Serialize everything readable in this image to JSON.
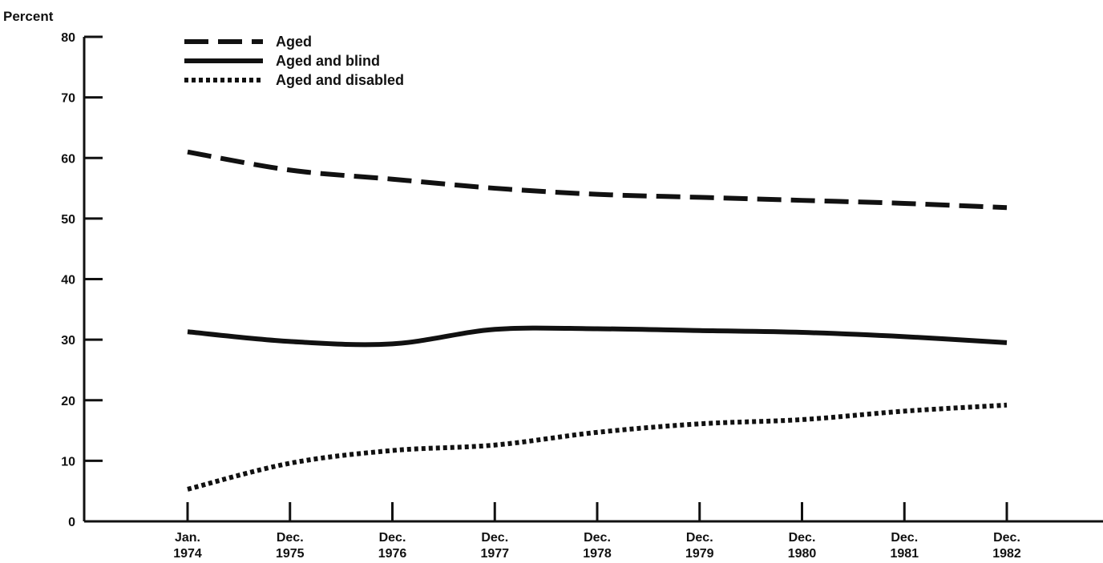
{
  "chart_data": {
    "type": "line",
    "title": "",
    "xlabel": "",
    "ylabel": "Percent",
    "ylim": [
      0,
      80
    ],
    "yticks": [
      0,
      10,
      20,
      30,
      40,
      50,
      60,
      70,
      80
    ],
    "categories": [
      [
        "Jan.",
        "1974"
      ],
      [
        "Dec.",
        "1975"
      ],
      [
        "Dec.",
        "1976"
      ],
      [
        "Dec.",
        "1977"
      ],
      [
        "Dec.",
        "1978"
      ],
      [
        "Dec.",
        "1979"
      ],
      [
        "Dec.",
        "1980"
      ],
      [
        "Dec.",
        "1981"
      ],
      [
        "Dec.",
        "1982"
      ]
    ],
    "series": [
      {
        "name": "Aged",
        "style": "dashed",
        "color": "#111111",
        "values": [
          61,
          58,
          56.5,
          55,
          54,
          53.5,
          53,
          52.5,
          51.8
        ]
      },
      {
        "name": "Aged and blind",
        "style": "solid",
        "color": "#111111",
        "values": [
          31.3,
          29.7,
          29.3,
          31.7,
          31.8,
          31.5,
          31.2,
          30.5,
          29.5
        ]
      },
      {
        "name": "Aged and disabled",
        "style": "dotted",
        "color": "#111111",
        "values": [
          5.3,
          9.6,
          11.7,
          12.6,
          14.7,
          16.1,
          16.8,
          18.2,
          19.2
        ]
      }
    ],
    "grid": false,
    "legend_position": "top-left"
  }
}
